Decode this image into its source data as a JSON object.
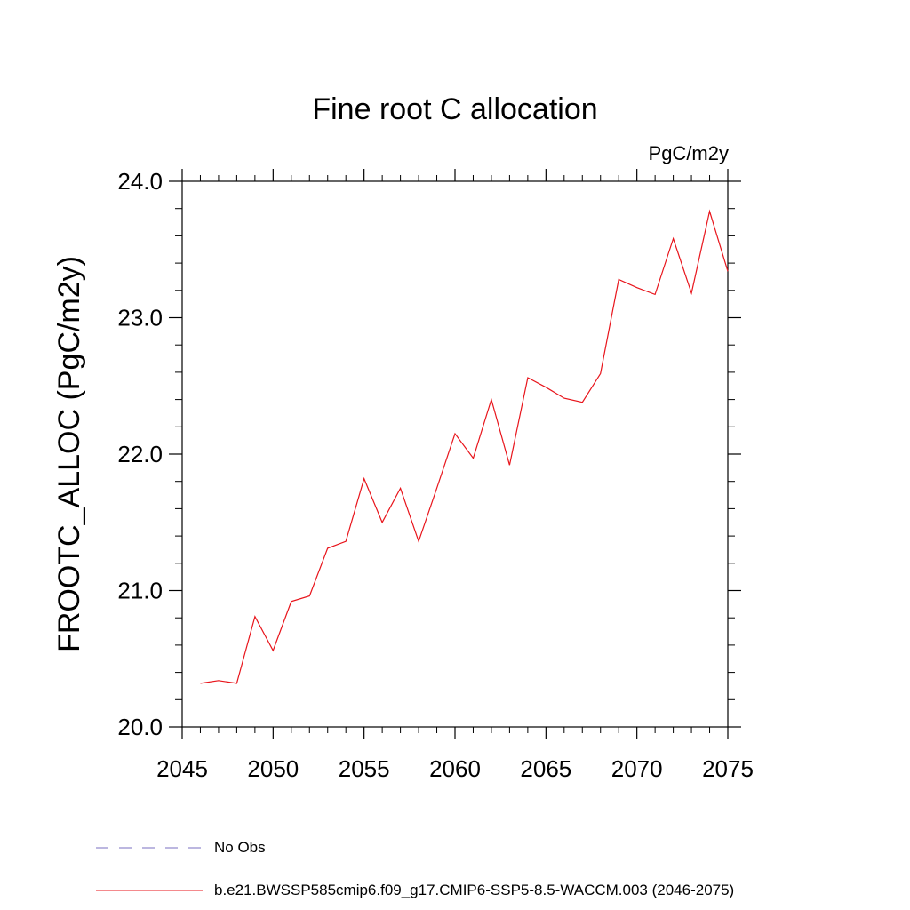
{
  "chart_data": {
    "type": "line",
    "title": "Fine root C allocation",
    "units_label": "PgC/m2y",
    "xlabel": "",
    "ylabel": "FROOTC_ALLOC  (PgC/m2y)",
    "xlim": [
      2045,
      2075
    ],
    "ylim": [
      20.0,
      24.0
    ],
    "x_ticks": [
      2045,
      2050,
      2055,
      2060,
      2065,
      2070,
      2075
    ],
    "x_tick_labels": [
      "2045",
      "2050",
      "2055",
      "2060",
      "2065",
      "2070",
      "2075"
    ],
    "y_ticks": [
      20.0,
      21.0,
      22.0,
      23.0,
      24.0
    ],
    "y_tick_labels": [
      "20.0",
      "21.0",
      "22.0",
      "23.0",
      "24.0"
    ],
    "grid": false,
    "series": [
      {
        "name": "b.e21.BWSSP585cmip6.f09_g17.CMIP6-SSP5-8.5-WACCM.003 (2046-2075)",
        "color": "#e8141b",
        "style": "solid",
        "x": [
          2046,
          2047,
          2048,
          2049,
          2050,
          2051,
          2052,
          2053,
          2054,
          2055,
          2056,
          2057,
          2058,
          2059,
          2060,
          2061,
          2062,
          2063,
          2064,
          2065,
          2066,
          2067,
          2068,
          2069,
          2070,
          2071,
          2072,
          2073,
          2074,
          2075
        ],
        "values": [
          20.32,
          20.34,
          20.32,
          20.81,
          20.56,
          20.92,
          20.96,
          21.31,
          21.36,
          21.82,
          21.5,
          21.75,
          21.36,
          21.75,
          22.15,
          21.97,
          22.4,
          21.92,
          22.56,
          22.49,
          22.41,
          22.38,
          22.59,
          23.28,
          23.22,
          23.17,
          23.58,
          23.18,
          23.78,
          23.34
        ]
      }
    ],
    "legend": {
      "placement": "bottom-left",
      "entries": [
        {
          "label": "No Obs",
          "color": "#7a6fc0",
          "style": "dashed"
        },
        {
          "label": "b.e21.BWSSP585cmip6.f09_g17.CMIP6-SSP5-8.5-WACCM.003 (2046-2075)",
          "color": "#e8141b",
          "style": "solid"
        }
      ]
    }
  }
}
